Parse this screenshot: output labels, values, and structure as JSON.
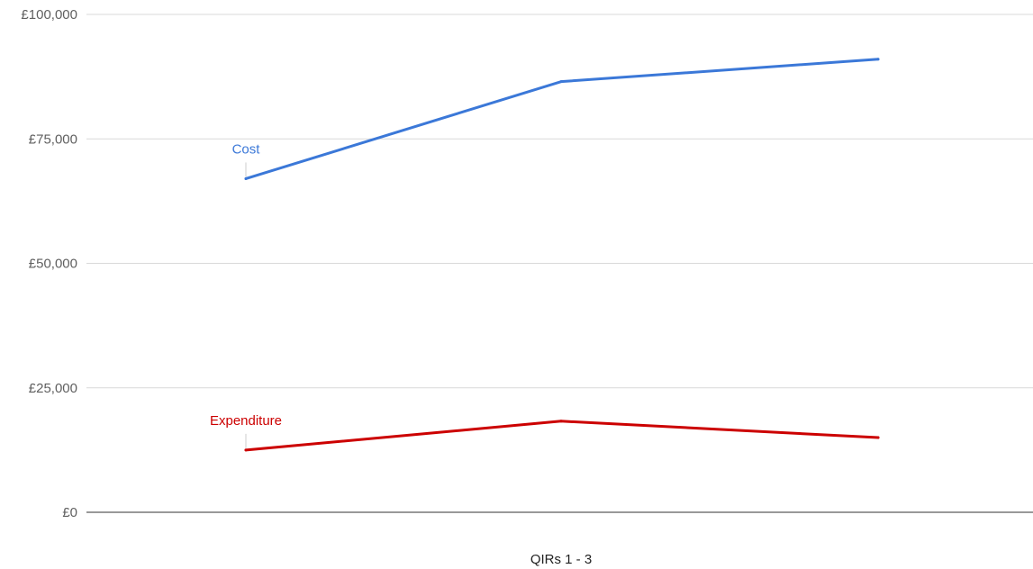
{
  "chart_data": {
    "type": "line",
    "xlabel": "QIRs 1 - 3",
    "ylabel": "",
    "ylim": [
      0,
      100000
    ],
    "y_ticks": [
      0,
      25000,
      50000,
      75000,
      100000
    ],
    "y_tick_labels": [
      "£0",
      "£25,000",
      "£50,000",
      "£75,000",
      "£100,000"
    ],
    "x": [
      1,
      2,
      3
    ],
    "grid": true,
    "legend": "none",
    "series": [
      {
        "name": "Cost",
        "color": "#3b78d8",
        "values": [
          67000,
          86500,
          91000
        ]
      },
      {
        "name": "Expenditure",
        "color": "#cc0000",
        "values": [
          12500,
          18300,
          15000
        ]
      }
    ]
  }
}
